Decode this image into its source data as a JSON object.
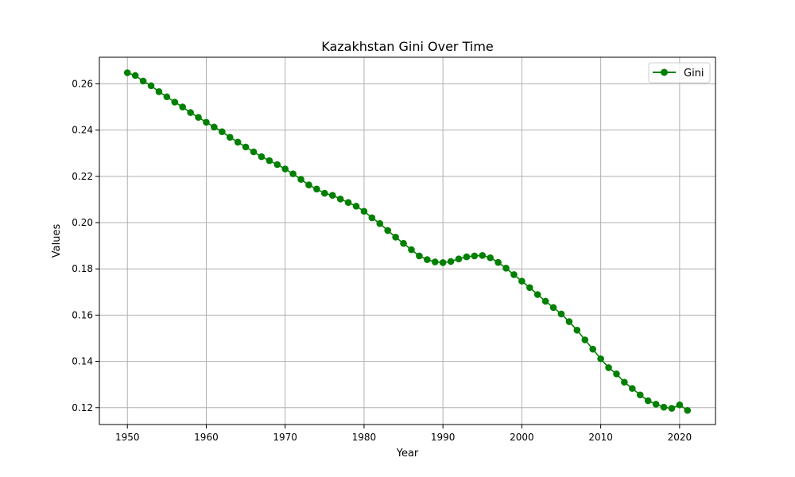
{
  "chart_data": {
    "type": "line",
    "title": "Kazakhstan Gini Over Time",
    "xlabel": "Year",
    "ylabel": "Values",
    "xlim": [
      1946.45,
      2024.55
    ],
    "ylim": [
      0.1127,
      0.2715
    ],
    "xticks": [
      1950,
      1960,
      1970,
      1980,
      1990,
      2000,
      2010,
      2020
    ],
    "yticks": [
      0.12,
      0.14,
      0.16,
      0.18,
      0.2,
      0.22,
      0.24,
      0.26
    ],
    "ytick_labels": [
      "0.12",
      "0.14",
      "0.16",
      "0.18",
      "0.20",
      "0.22",
      "0.24",
      "0.26"
    ],
    "grid": true,
    "legend_position": "top-right",
    "series": [
      {
        "name": "Gini",
        "color": "#008000",
        "marker": "circle",
        "x": [
          1950,
          1951,
          1952,
          1953,
          1954,
          1955,
          1956,
          1957,
          1958,
          1959,
          1960,
          1961,
          1962,
          1963,
          1964,
          1965,
          1966,
          1967,
          1968,
          1969,
          1970,
          1971,
          1972,
          1973,
          1974,
          1975,
          1976,
          1977,
          1978,
          1979,
          1980,
          1981,
          1982,
          1983,
          1984,
          1985,
          1986,
          1987,
          1988,
          1989,
          1990,
          1991,
          1992,
          1993,
          1994,
          1995,
          1996,
          1997,
          1998,
          1999,
          2000,
          2001,
          2002,
          2003,
          2004,
          2005,
          2006,
          2007,
          2008,
          2009,
          2010,
          2011,
          2012,
          2013,
          2014,
          2015,
          2016,
          2017,
          2018,
          2019,
          2020,
          2021
        ],
        "values": [
          0.2648,
          0.2636,
          0.2612,
          0.2592,
          0.2566,
          0.2544,
          0.2521,
          0.25,
          0.2476,
          0.2455,
          0.2434,
          0.2413,
          0.2393,
          0.2369,
          0.2348,
          0.2327,
          0.2306,
          0.2285,
          0.2268,
          0.2251,
          0.2232,
          0.2211,
          0.2187,
          0.2163,
          0.2145,
          0.2127,
          0.2118,
          0.2102,
          0.2087,
          0.2071,
          0.2049,
          0.2021,
          0.1996,
          0.1966,
          0.1937,
          0.191,
          0.1883,
          0.1856,
          0.184,
          0.183,
          0.1827,
          0.1832,
          0.1843,
          0.1852,
          0.1856,
          0.1858,
          0.1848,
          0.1828,
          0.1803,
          0.1775,
          0.1747,
          0.1719,
          0.1689,
          0.166,
          0.1633,
          0.1605,
          0.1572,
          0.1535,
          0.1493,
          0.1453,
          0.1411,
          0.1373,
          0.1346,
          0.131,
          0.1283,
          0.1255,
          0.123,
          0.1215,
          0.1202,
          0.1197,
          0.1212,
          0.1188
        ]
      }
    ]
  }
}
